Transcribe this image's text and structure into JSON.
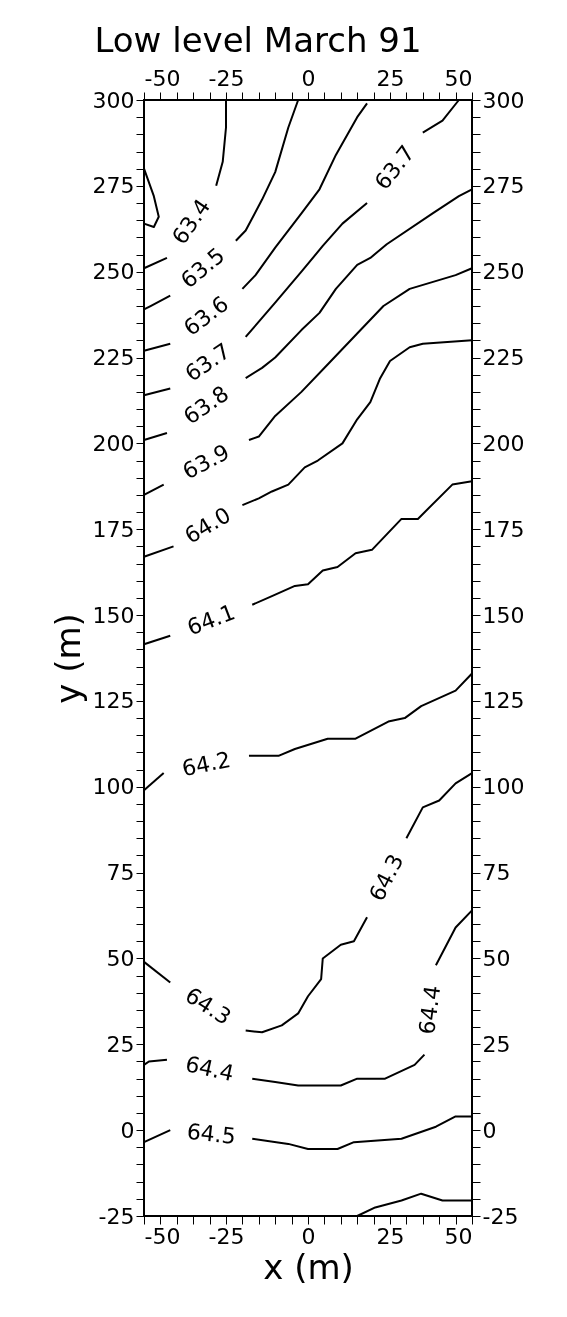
{
  "chart_data": {
    "type": "line",
    "title": "Low level March 91",
    "xlabel": "x (m)",
    "ylabel": "y (m)",
    "x2label": null,
    "xlim": [
      -50,
      50
    ],
    "ylim": [
      -25,
      300
    ],
    "x2lim": [
      -50,
      50
    ],
    "y2lim": [
      -25,
      300
    ],
    "xticks": [
      -50,
      {
        "value": -45,
        "label": null
      },
      {
        "value": -40,
        "label": null
      },
      {
        "value": -35,
        "label": null
      },
      {
        "value": -30,
        "label": null
      },
      -25,
      {
        "value": -20,
        "label": null
      },
      {
        "value": -15,
        "label": null
      },
      {
        "value": -10,
        "label": null
      },
      {
        "value": -5,
        "label": null
      },
      0,
      {
        "value": 5,
        "label": null
      },
      {
        "value": 10,
        "label": null
      },
      {
        "value": 15,
        "label": null
      },
      {
        "value": 20,
        "label": null
      },
      25,
      {
        "value": 30,
        "label": null
      },
      {
        "value": 35,
        "label": null
      },
      {
        "value": 40,
        "label": null
      },
      {
        "value": 45,
        "label": null
      },
      50
    ],
    "x2ticks": [
      -50,
      {
        "value": -45,
        "label": null
      },
      {
        "value": -40,
        "label": null
      },
      {
        "value": -35,
        "label": null
      },
      {
        "value": -30,
        "label": null
      },
      -25,
      {
        "value": -20,
        "label": null
      },
      {
        "value": -15,
        "label": null
      },
      {
        "value": -10,
        "label": null
      },
      {
        "value": -5,
        "label": null
      },
      0,
      {
        "value": 5,
        "label": null
      },
      {
        "value": 10,
        "label": null
      },
      {
        "value": 15,
        "label": null
      },
      {
        "value": 20,
        "label": null
      },
      25,
      {
        "value": 30,
        "label": null
      },
      {
        "value": 35,
        "label": null
      },
      {
        "value": 40,
        "label": null
      },
      {
        "value": 45,
        "label": null
      },
      50
    ],
    "yticks": [
      -25,
      {
        "value": -20,
        "label": null
      },
      {
        "value": -15,
        "label": null
      },
      {
        "value": -10,
        "label": null
      },
      {
        "value": -5,
        "label": null
      },
      0,
      {
        "value": 5,
        "label": null
      },
      {
        "value": 10,
        "label": null
      },
      {
        "value": 15,
        "label": null
      },
      {
        "value": 20,
        "label": null
      },
      25,
      {
        "value": 30,
        "label": null
      },
      {
        "value": 35,
        "label": null
      },
      {
        "value": 40,
        "label": null
      },
      {
        "value": 45,
        "label": null
      },
      50,
      {
        "value": 55,
        "label": null
      },
      {
        "value": 60,
        "label": null
      },
      {
        "value": 65,
        "label": null
      },
      {
        "value": 70,
        "label": null
      },
      75,
      {
        "value": 80,
        "label": null
      },
      {
        "value": 85,
        "label": null
      },
      {
        "value": 90,
        "label": null
      },
      {
        "value": 95,
        "label": null
      },
      100,
      {
        "value": 105,
        "label": null
      },
      {
        "value": 110,
        "label": null
      },
      {
        "value": 115,
        "label": null
      },
      {
        "value": 120,
        "label": null
      },
      125,
      {
        "value": 130,
        "label": null
      },
      {
        "value": 135,
        "label": null
      },
      {
        "value": 140,
        "label": null
      },
      {
        "value": 145,
        "label": null
      },
      150,
      {
        "value": 155,
        "label": null
      },
      {
        "value": 160,
        "label": null
      },
      {
        "value": 165,
        "label": null
      },
      {
        "value": 170,
        "label": null
      },
      175,
      {
        "value": 180,
        "label": null
      },
      {
        "value": 185,
        "label": null
      },
      {
        "value": 190,
        "label": null
      },
      {
        "value": 195,
        "label": null
      },
      200,
      {
        "value": 205,
        "label": null
      },
      {
        "value": 210,
        "label": null
      },
      {
        "value": 215,
        "label": null
      },
      {
        "value": 220,
        "label": null
      },
      225,
      {
        "value": 230,
        "label": null
      },
      {
        "value": 235,
        "label": null
      },
      {
        "value": 240,
        "label": null
      },
      {
        "value": 245,
        "label": null
      },
      250,
      {
        "value": 255,
        "label": null
      },
      {
        "value": 260,
        "label": null
      },
      {
        "value": 265,
        "label": null
      },
      {
        "value": 270,
        "label": null
      },
      275,
      {
        "value": 280,
        "label": null
      },
      {
        "value": 285,
        "label": null
      },
      {
        "value": 290,
        "label": null
      },
      {
        "value": 295,
        "label": null
      },
      300
    ],
    "y2ticks": [
      -25,
      {
        "value": -20,
        "label": null
      },
      {
        "value": -15,
        "label": null
      },
      {
        "value": -10,
        "label": null
      },
      {
        "value": -5,
        "label": null
      },
      0,
      {
        "value": 5,
        "label": null
      },
      {
        "value": 10,
        "label": null
      },
      {
        "value": 15,
        "label": null
      },
      {
        "value": 20,
        "label": null
      },
      25,
      {
        "value": 30,
        "label": null
      },
      {
        "value": 35,
        "label": null
      },
      {
        "value": 40,
        "label": null
      },
      {
        "value": 45,
        "label": null
      },
      50,
      {
        "value": 55,
        "label": null
      },
      {
        "value": 60,
        "label": null
      },
      {
        "value": 65,
        "label": null
      },
      {
        "value": 70,
        "label": null
      },
      75,
      {
        "value": 80,
        "label": null
      },
      {
        "value": 85,
        "label": null
      },
      {
        "value": 90,
        "label": null
      },
      {
        "value": 95,
        "label": null
      },
      100,
      {
        "value": 105,
        "label": null
      },
      {
        "value": 110,
        "label": null
      },
      {
        "value": 115,
        "label": null
      },
      {
        "value": 120,
        "label": null
      },
      125,
      {
        "value": 130,
        "label": null
      },
      {
        "value": 135,
        "label": null
      },
      {
        "value": 140,
        "label": null
      },
      {
        "value": 145,
        "label": null
      },
      150,
      {
        "value": 155,
        "label": null
      },
      {
        "value": 160,
        "label": null
      },
      {
        "value": 165,
        "label": null
      },
      {
        "value": 170,
        "label": null
      },
      175,
      {
        "value": 180,
        "label": null
      },
      {
        "value": 185,
        "label": null
      },
      {
        "value": 190,
        "label": null
      },
      {
        "value": 195,
        "label": null
      },
      200,
      {
        "value": 205,
        "label": null
      },
      {
        "value": 210,
        "label": null
      },
      {
        "value": 215,
        "label": null
      },
      {
        "value": 220,
        "label": null
      },
      225,
      {
        "value": 230,
        "label": null
      },
      {
        "value": 235,
        "label": null
      },
      {
        "value": 240,
        "label": null
      },
      {
        "value": 245,
        "label": null
      },
      250,
      {
        "value": 255,
        "label": null
      },
      {
        "value": 260,
        "label": null
      },
      {
        "value": 265,
        "label": null
      },
      {
        "value": 270,
        "label": null
      },
      275,
      {
        "value": 280,
        "label": null
      },
      {
        "value": 285,
        "label": null
      },
      {
        "value": 290,
        "label": null
      },
      {
        "value": 295,
        "label": null
      },
      300
    ],
    "grid": false,
    "legend": false,
    "marker": "none",
    "line_style": "solid",
    "series": [
      {
        "color": "#000000",
        "x": [
          -50,
          -47,
          -45.5,
          -47,
          -50
        ],
        "values": [
          280,
          272,
          266,
          263,
          264
        ]
      },
      {
        "name": "63.4",
        "color": "#000000",
        "x": [
          -50,
          -43,
          null,
          -28,
          -26,
          -25,
          -25
        ],
        "values": [
          251,
          254,
          null,
          275,
          282,
          292,
          300
        ]
      },
      {
        "name": "63.5",
        "color": "#000000",
        "x": [
          -50,
          -48,
          -42,
          null,
          -22,
          -19,
          -14,
          -10,
          -6,
          -3
        ],
        "values": [
          239,
          240,
          243,
          null,
          259,
          262,
          271,
          279,
          292,
          300
        ]
      },
      {
        "name": "63.6",
        "color": "#000000",
        "x": [
          -50,
          -42,
          null,
          -20,
          -16,
          -10,
          -2,
          3.5,
          8.5,
          15,
          18
        ],
        "values": [
          227,
          229,
          null,
          245,
          249,
          257,
          267,
          274,
          284,
          295,
          299
        ]
      },
      {
        "name": "63.7",
        "color": "#000000",
        "x": [
          -50,
          -42,
          null,
          -19,
          -10,
          -2,
          4.5,
          10.5,
          18,
          null,
          35,
          41,
          46
        ],
        "values": [
          214,
          216,
          null,
          231,
          241,
          250,
          257.5,
          264,
          270,
          null,
          290.5,
          294,
          300
        ]
      },
      {
        "name": "63.8",
        "color": "#000000",
        "x": [
          -50,
          -43,
          null,
          -19,
          -14,
          -10,
          -2,
          3.5,
          8.5,
          15,
          19,
          24,
          38,
          46,
          50
        ],
        "values": [
          201,
          203,
          null,
          219,
          222,
          225,
          233,
          238,
          245,
          252,
          254,
          258,
          267,
          272,
          274
        ]
      },
      {
        "name": "63.9",
        "color": "#000000",
        "x": [
          -50,
          -44,
          null,
          -18,
          -15,
          -10,
          -2,
          6.5,
          15,
          23,
          31,
          45,
          50
        ],
        "values": [
          185,
          188,
          null,
          201,
          202,
          208,
          215,
          223.5,
          232,
          240,
          245,
          249,
          251
        ]
      },
      {
        "name": "64.0",
        "color": "#000000",
        "x": [
          -50,
          -41,
          null,
          -20,
          -15,
          -11,
          -6,
          -1,
          3,
          10.5,
          15,
          19,
          22,
          25,
          31,
          35,
          50
        ],
        "values": [
          167,
          170,
          null,
          182,
          184,
          186,
          188,
          193,
          195,
          200,
          207,
          212,
          219,
          224,
          228,
          229,
          230
        ]
      },
      {
        "name": "64.1",
        "color": "#000000",
        "x": [
          -50,
          -42,
          null,
          -17,
          -11,
          -4,
          0,
          4.5,
          9,
          14.5,
          19.5,
          28.5,
          33.5,
          44,
          50
        ],
        "values": [
          141.5,
          144,
          null,
          153,
          155.5,
          158.5,
          159,
          163,
          164,
          168,
          169,
          178,
          178,
          188,
          189
        ]
      },
      {
        "name": "64.2",
        "color": "#000000",
        "x": [
          -50,
          -44,
          null,
          -18,
          -9,
          -4,
          6,
          14.5,
          24.5,
          29.5,
          34.5,
          45,
          50
        ],
        "values": [
          99,
          104,
          null,
          109,
          109,
          111,
          114,
          114,
          119,
          120,
          123.5,
          128,
          133
        ]
      },
      {
        "name": "64.3",
        "color": "#000000",
        "x": [
          -50,
          -42,
          null,
          -19,
          -14,
          -8,
          -3,
          0,
          4,
          4.5,
          10,
          14,
          18,
          null,
          30,
          35,
          40,
          45,
          50
        ],
        "values": [
          49,
          43,
          null,
          29,
          28.5,
          30.5,
          34,
          39,
          44,
          50,
          54,
          55,
          62,
          null,
          85,
          94,
          96,
          101,
          104
        ]
      },
      {
        "name": "64.4",
        "color": "#000000",
        "x": [
          -50,
          -48.5,
          -43,
          null,
          -17,
          -10,
          -3,
          10,
          15,
          23.5,
          32.5,
          35.5,
          null,
          39,
          45,
          50
        ],
        "values": [
          19,
          20,
          20.5,
          null,
          15,
          14,
          13,
          13,
          15,
          15,
          19,
          22,
          null,
          48,
          59,
          64
        ]
      },
      {
        "name": "64.5",
        "color": "#000000",
        "x": [
          -50,
          -42,
          null,
          -17,
          -6,
          0,
          9,
          14,
          28.5,
          39,
          45,
          50
        ],
        "values": [
          -3.5,
          0,
          null,
          -2.5,
          -4,
          -5.5,
          -5.5,
          -3.5,
          -2.5,
          1,
          4,
          4
        ]
      },
      {
        "color": "#000000",
        "x": [
          15,
          20.5,
          28.5,
          34.5,
          41,
          50
        ],
        "values": [
          -25,
          -22.5,
          -20.5,
          -18.5,
          -20.5,
          -20.5
        ]
      }
    ]
  }
}
